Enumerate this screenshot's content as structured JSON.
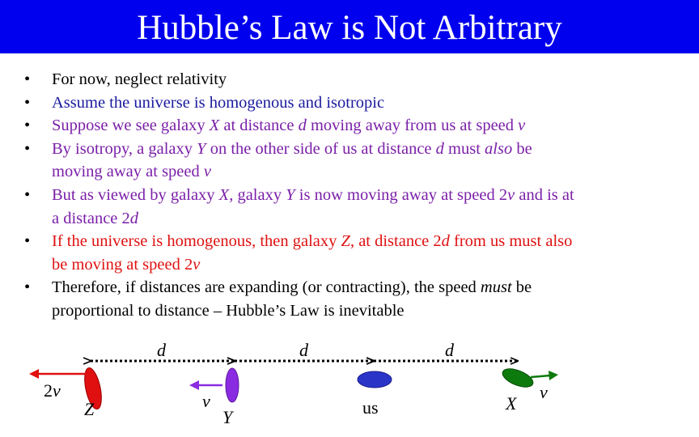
{
  "title": "Hubble’s Law is Not Arbitrary",
  "colors": {
    "title_bg": "#0000ee",
    "title_text": "#ffffff",
    "black": "#000000",
    "blue": "#1a1a9e",
    "purple": "#7a1fa8",
    "red": "#e01010",
    "galaxy_red": "#e01010",
    "galaxy_purple": "#8a2be2",
    "galaxy_blue": "#2a35c8",
    "galaxy_green": "#0d7a0d",
    "arrow_red": "#e01010",
    "arrow_purple": "#8a2be2",
    "arrow_green": "#0d7a0d"
  },
  "bullets": [
    {
      "bullet": "•",
      "color": "black",
      "lines": [
        [
          {
            "t": "For now, neglect relativity"
          }
        ]
      ]
    },
    {
      "bullet": "•",
      "color": "blue",
      "lines": [
        [
          {
            "t": "Assume the universe is homogenous and isotropic"
          }
        ]
      ]
    },
    {
      "bullet": "•",
      "color": "purple",
      "lines": [
        [
          {
            "t": "Suppose we see galaxy "
          },
          {
            "t": "X",
            "i": true
          },
          {
            "t": " at distance "
          },
          {
            "t": "d",
            "i": true
          },
          {
            "t": " moving away from us at speed "
          },
          {
            "t": "v",
            "i": true
          }
        ]
      ]
    },
    {
      "bullet": "•",
      "color": "purple",
      "lines": [
        [
          {
            "t": "By isotropy, a galaxy "
          },
          {
            "t": "Y",
            "i": true
          },
          {
            "t": " on the other side of us at distance "
          },
          {
            "t": "d",
            "i": true
          },
          {
            "t": " must "
          },
          {
            "t": "also",
            "i": true
          },
          {
            "t": " be"
          }
        ],
        [
          {
            "t": "moving away at speed "
          },
          {
            "t": "v",
            "i": true
          }
        ]
      ]
    },
    {
      "bullet": "•",
      "color": "purple",
      "lines": [
        [
          {
            "t": "But as viewed by galaxy "
          },
          {
            "t": "X",
            "i": true
          },
          {
            "t": ", galaxy "
          },
          {
            "t": "Y",
            "i": true
          },
          {
            "t": " is now moving away at speed 2"
          },
          {
            "t": "v",
            "i": true
          },
          {
            "t": " and is at"
          }
        ],
        [
          {
            "t": "a distance 2"
          },
          {
            "t": "d",
            "i": true
          }
        ]
      ]
    },
    {
      "bullet": "•",
      "color": "red",
      "lines": [
        [
          {
            "t": "If the universe is homogenous, then galaxy "
          },
          {
            "t": "Z",
            "i": true
          },
          {
            "t": ", at distance 2"
          },
          {
            "t": "d",
            "i": true
          },
          {
            "t": " from us must also"
          }
        ],
        [
          {
            "t": "be moving at speed 2"
          },
          {
            "t": "v",
            "i": true
          }
        ]
      ]
    },
    {
      "bullet": "•",
      "color": "black",
      "lines": [
        [
          {
            "t": "Therefore, if distances are expanding (or contracting), the speed "
          },
          {
            "t": "must",
            "i": true
          },
          {
            "t": " be"
          }
        ],
        [
          {
            "t": "proportional to distance – Hubble’s Law is inevitable"
          }
        ]
      ]
    }
  ],
  "diagram": {
    "distance_labels": [
      "d",
      "d",
      "d"
    ],
    "galaxy_labels": {
      "z": "Z",
      "y": "Y",
      "us": "us",
      "x": "X"
    },
    "velocity_labels": {
      "z": "2v",
      "y": "v",
      "x": "v"
    }
  }
}
